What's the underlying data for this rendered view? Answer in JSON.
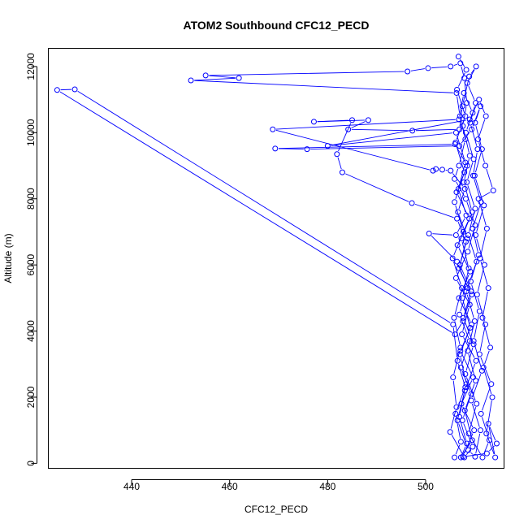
{
  "chart_data": {
    "type": "line",
    "title": "ATOM2 Southbound CFC12_PECD",
    "xlabel": "CFC12_PECD",
    "ylabel": "Altitude (m)",
    "xlim": [
      423,
      516
    ],
    "ylim": [
      -150,
      12550
    ],
    "xticks": [
      440,
      460,
      480,
      500
    ],
    "yticks": [
      0,
      2000,
      4000,
      6000,
      8000,
      10000,
      12000
    ],
    "colors": {
      "series": "#0000ff",
      "axis": "#000000"
    },
    "series": [
      {
        "name": "CFC12_PECD profile",
        "marker": "open-circle",
        "points": [
          {
            "x": 505.9,
            "y": 180
          },
          {
            "x": 507.2,
            "y": 650
          },
          {
            "x": 506.1,
            "y": 1500
          },
          {
            "x": 508.3,
            "y": 2400
          },
          {
            "x": 507.0,
            "y": 3300
          },
          {
            "x": 509.1,
            "y": 4100
          },
          {
            "x": 507.5,
            "y": 5000
          },
          {
            "x": 508.8,
            "y": 5900
          },
          {
            "x": 507.3,
            "y": 6800
          },
          {
            "x": 509.5,
            "y": 7600
          },
          {
            "x": 507.8,
            "y": 8500
          },
          {
            "x": 509.0,
            "y": 9300
          },
          {
            "x": 507.6,
            "y": 10200
          },
          {
            "x": 508.4,
            "y": 10900
          },
          {
            "x": 507.9,
            "y": 11650
          },
          {
            "x": 507.1,
            "y": 12100
          },
          {
            "x": 505.1,
            "y": 12000
          },
          {
            "x": 500.5,
            "y": 11950
          },
          {
            "x": 496.3,
            "y": 11850
          },
          {
            "x": 455.1,
            "y": 11730
          },
          {
            "x": 461.9,
            "y": 11650
          },
          {
            "x": 452.1,
            "y": 11580
          },
          {
            "x": 506.3,
            "y": 11200
          },
          {
            "x": 507.0,
            "y": 10500
          },
          {
            "x": 508.1,
            "y": 9800
          },
          {
            "x": 506.8,
            "y": 9000
          },
          {
            "x": 505.9,
            "y": 8600
          },
          {
            "x": 508.2,
            "y": 8000
          },
          {
            "x": 510.1,
            "y": 7200
          },
          {
            "x": 508.6,
            "y": 6400
          },
          {
            "x": 506.2,
            "y": 5600
          },
          {
            "x": 509.0,
            "y": 4800
          },
          {
            "x": 507.4,
            "y": 3900
          },
          {
            "x": 510.3,
            "y": 3100
          },
          {
            "x": 508.0,
            "y": 2200
          },
          {
            "x": 506.5,
            "y": 1300
          },
          {
            "x": 508.7,
            "y": 400
          },
          {
            "x": 510.1,
            "y": 200
          },
          {
            "x": 511.2,
            "y": 1000
          },
          {
            "x": 509.3,
            "y": 1900
          },
          {
            "x": 511.5,
            "y": 2800
          },
          {
            "x": 509.8,
            "y": 3700
          },
          {
            "x": 511.0,
            "y": 4600
          },
          {
            "x": 509.2,
            "y": 5500
          },
          {
            "x": 510.8,
            "y": 6300
          },
          {
            "x": 509.6,
            "y": 7100
          },
          {
            "x": 511.3,
            "y": 7900
          },
          {
            "x": 509.7,
            "y": 8700
          },
          {
            "x": 510.6,
            "y": 9500
          },
          {
            "x": 509.1,
            "y": 10300
          },
          {
            "x": 510.2,
            "y": 10900
          },
          {
            "x": 508.5,
            "y": 11500
          },
          {
            "x": 510.3,
            "y": 12000
          },
          {
            "x": 508.9,
            "y": 11700
          },
          {
            "x": 507.5,
            "y": 10800
          },
          {
            "x": 506.9,
            "y": 10100
          },
          {
            "x": 497.3,
            "y": 10060
          },
          {
            "x": 484.2,
            "y": 10100
          },
          {
            "x": 488.3,
            "y": 10380
          },
          {
            "x": 477.2,
            "y": 10330
          },
          {
            "x": 485.0,
            "y": 10380
          },
          {
            "x": 481.9,
            "y": 9350
          },
          {
            "x": 483.0,
            "y": 8800
          },
          {
            "x": 497.2,
            "y": 7870
          },
          {
            "x": 506.4,
            "y": 7400
          },
          {
            "x": 508.2,
            "y": 6700
          },
          {
            "x": 506.8,
            "y": 5900
          },
          {
            "x": 509.4,
            "y": 5100
          },
          {
            "x": 507.6,
            "y": 4300
          },
          {
            "x": 506.0,
            "y": 3900
          },
          {
            "x": 424.8,
            "y": 11290
          },
          {
            "x": 428.4,
            "y": 11310
          },
          {
            "x": 505.6,
            "y": 4200
          },
          {
            "x": 506.5,
            "y": 3100
          },
          {
            "x": 508.1,
            "y": 2300
          },
          {
            "x": 506.9,
            "y": 1400
          },
          {
            "x": 508.4,
            "y": 600
          },
          {
            "x": 507.2,
            "y": 180
          },
          {
            "x": 509.5,
            "y": 700
          },
          {
            "x": 508.0,
            "y": 1600
          },
          {
            "x": 510.2,
            "y": 2500
          },
          {
            "x": 508.6,
            "y": 3400
          },
          {
            "x": 510.0,
            "y": 4300
          },
          {
            "x": 508.3,
            "y": 5200
          },
          {
            "x": 510.4,
            "y": 6100
          },
          {
            "x": 508.7,
            "y": 6900
          },
          {
            "x": 510.1,
            "y": 7700
          },
          {
            "x": 508.4,
            "y": 8500
          },
          {
            "x": 509.8,
            "y": 9200
          },
          {
            "x": 508.2,
            "y": 10000
          },
          {
            "x": 509.6,
            "y": 10600
          },
          {
            "x": 507.8,
            "y": 11200
          },
          {
            "x": 506.8,
            "y": 10400
          },
          {
            "x": 468.8,
            "y": 10100
          },
          {
            "x": 501.5,
            "y": 8850
          },
          {
            "x": 502.1,
            "y": 8900
          },
          {
            "x": 503.4,
            "y": 8880
          },
          {
            "x": 505.1,
            "y": 8850
          },
          {
            "x": 508.0,
            "y": 8300
          },
          {
            "x": 506.6,
            "y": 7600
          },
          {
            "x": 508.5,
            "y": 6800
          },
          {
            "x": 507.0,
            "y": 6000
          },
          {
            "x": 509.3,
            "y": 5200
          },
          {
            "x": 507.7,
            "y": 4400
          },
          {
            "x": 509.8,
            "y": 3600
          },
          {
            "x": 508.1,
            "y": 2700
          },
          {
            "x": 510.4,
            "y": 1800
          },
          {
            "x": 508.8,
            "y": 900
          },
          {
            "x": 511.6,
            "y": 180
          },
          {
            "x": 513.0,
            "y": 700
          },
          {
            "x": 511.3,
            "y": 1500
          },
          {
            "x": 513.4,
            "y": 2400
          },
          {
            "x": 511.0,
            "y": 3300
          },
          {
            "x": 512.2,
            "y": 4200
          },
          {
            "x": 510.5,
            "y": 5100
          },
          {
            "x": 512.0,
            "y": 6000
          },
          {
            "x": 510.2,
            "y": 6900
          },
          {
            "x": 511.9,
            "y": 7800
          },
          {
            "x": 510.0,
            "y": 8700
          },
          {
            "x": 511.5,
            "y": 9500
          },
          {
            "x": 510.1,
            "y": 10300
          },
          {
            "x": 511.2,
            "y": 10800
          },
          {
            "x": 509.4,
            "y": 10100
          },
          {
            "x": 506.9,
            "y": 9600
          },
          {
            "x": 475.8,
            "y": 9500
          },
          {
            "x": 469.3,
            "y": 9520
          },
          {
            "x": 506.0,
            "y": 9650
          },
          {
            "x": 508.5,
            "y": 9000
          },
          {
            "x": 506.3,
            "y": 8200
          },
          {
            "x": 508.9,
            "y": 7400
          },
          {
            "x": 506.5,
            "y": 6600
          },
          {
            "x": 509.1,
            "y": 5800
          },
          {
            "x": 506.8,
            "y": 5000
          },
          {
            "x": 509.4,
            "y": 4200
          },
          {
            "x": 507.1,
            "y": 3400
          },
          {
            "x": 509.7,
            "y": 2600
          },
          {
            "x": 507.3,
            "y": 1800
          },
          {
            "x": 509.9,
            "y": 1000
          },
          {
            "x": 507.6,
            "y": 200
          },
          {
            "x": 512.5,
            "y": 300
          },
          {
            "x": 514.5,
            "y": 600
          },
          {
            "x": 512.8,
            "y": 1200
          },
          {
            "x": 514.2,
            "y": 180
          },
          {
            "x": 512.4,
            "y": 900
          },
          {
            "x": 513.6,
            "y": 2000
          },
          {
            "x": 511.8,
            "y": 2900
          },
          {
            "x": 513.2,
            "y": 3500
          },
          {
            "x": 511.6,
            "y": 4400
          },
          {
            "x": 512.8,
            "y": 5300
          },
          {
            "x": 511.1,
            "y": 6200
          },
          {
            "x": 512.5,
            "y": 7100
          },
          {
            "x": 510.8,
            "y": 8000
          },
          {
            "x": 513.8,
            "y": 8250
          },
          {
            "x": 512.2,
            "y": 9000
          },
          {
            "x": 510.7,
            "y": 9800
          },
          {
            "x": 512.3,
            "y": 10500
          },
          {
            "x": 510.9,
            "y": 11000
          },
          {
            "x": 509.0,
            "y": 10400
          },
          {
            "x": 480.0,
            "y": 9600
          },
          {
            "x": 506.2,
            "y": 10000
          },
          {
            "x": 508.1,
            "y": 9100
          },
          {
            "x": 506.7,
            "y": 8300
          },
          {
            "x": 508.3,
            "y": 7500
          },
          {
            "x": 506.2,
            "y": 6900
          },
          {
            "x": 500.7,
            "y": 6950
          },
          {
            "x": 506.4,
            "y": 6100
          },
          {
            "x": 508.6,
            "y": 5300
          },
          {
            "x": 506.9,
            "y": 4500
          },
          {
            "x": 509.0,
            "y": 3700
          },
          {
            "x": 507.2,
            "y": 2900
          },
          {
            "x": 509.3,
            "y": 2100
          },
          {
            "x": 507.5,
            "y": 1300
          },
          {
            "x": 509.6,
            "y": 500
          },
          {
            "x": 507.9,
            "y": 180
          },
          {
            "x": 505.0,
            "y": 950
          },
          {
            "x": 506.3,
            "y": 1700
          },
          {
            "x": 505.6,
            "y": 2600
          },
          {
            "x": 507.1,
            "y": 3500
          },
          {
            "x": 505.8,
            "y": 4400
          },
          {
            "x": 507.4,
            "y": 5300
          },
          {
            "x": 505.5,
            "y": 6200
          },
          {
            "x": 507.7,
            "y": 7000
          },
          {
            "x": 505.9,
            "y": 7900
          },
          {
            "x": 507.9,
            "y": 8800
          },
          {
            "x": 506.1,
            "y": 9700
          },
          {
            "x": 508.1,
            "y": 10500
          },
          {
            "x": 506.4,
            "y": 11300
          },
          {
            "x": 508.3,
            "y": 11900
          },
          {
            "x": 506.7,
            "y": 12300
          }
        ]
      }
    ]
  }
}
